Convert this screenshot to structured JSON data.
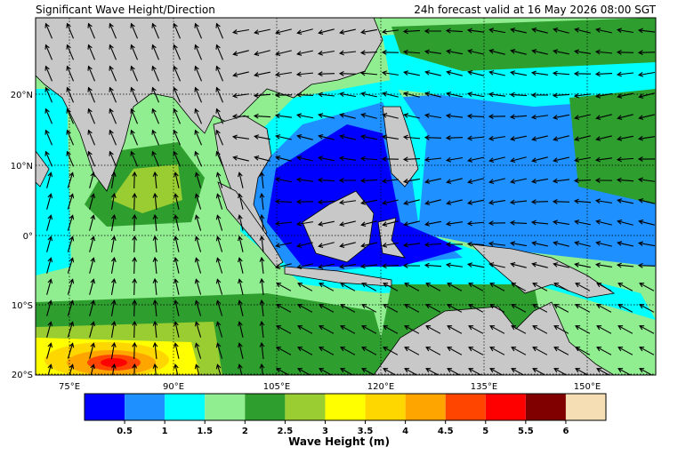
{
  "title": "Significant Wave Height/Direction",
  "subtitle": "24h forecast valid at 16 May 2026 08:00 SGT",
  "map": {
    "lat_labels": [
      "20°N",
      "10°N",
      "0°",
      "10°S",
      "20°S"
    ],
    "lon_labels": [
      "75°E",
      "90°E",
      "105°E",
      "120°E",
      "135°E",
      "150°E"
    ]
  },
  "colorbar": {
    "label": "Wave Height (m)",
    "ticks": [
      0.5,
      1,
      1.5,
      2,
      2.5,
      3,
      3.5,
      4,
      4.5,
      5,
      5.5,
      6
    ],
    "colors": [
      "#0000ff",
      "#1e90ff",
      "#00ffff",
      "#90ee90",
      "#2e9e2e",
      "#9acd32",
      "#ffff00",
      "#ffd700",
      "#ffa500",
      "#ff4500",
      "#ff0000",
      "#800000",
      "#f5deb3"
    ]
  }
}
